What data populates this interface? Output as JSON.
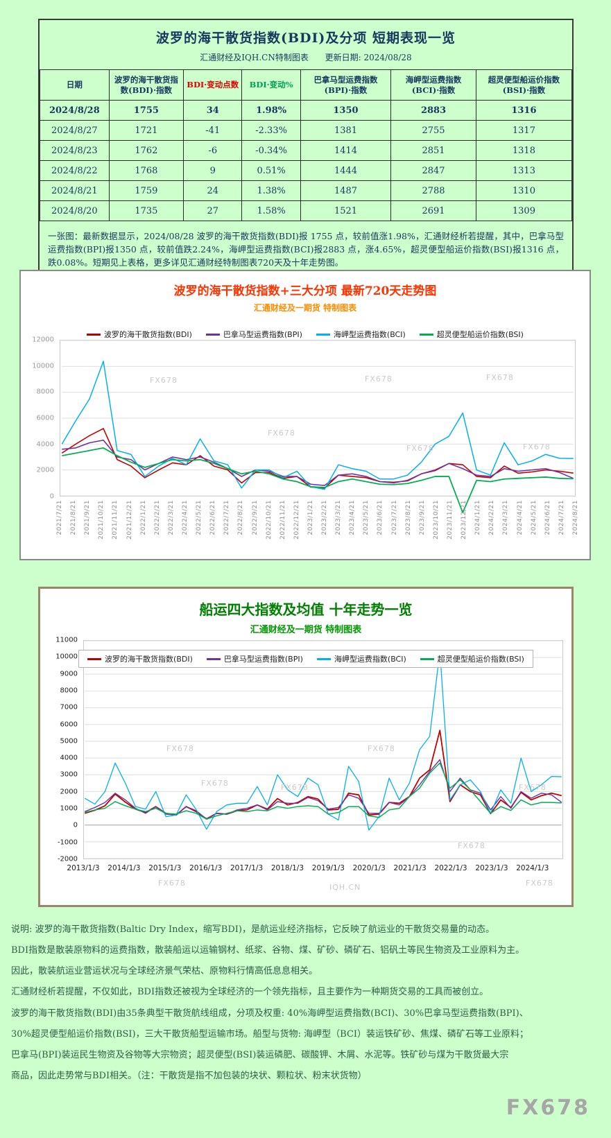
{
  "page": {
    "background": "#ccffcc"
  },
  "watermarks": {
    "fx678": "FX678",
    "iqh": "IQH.CN"
  },
  "table_panel": {
    "title": "波罗的海干散货指数(BDI)及分项  短期表现一览",
    "source": "汇通财经及IQH.CN特制图表",
    "updated": "更新日期: 2024/08/28",
    "columns": [
      "日期",
      "波罗的海干散货指数(BDI)·指数",
      "BDI·变动点数",
      "BDI·变动%",
      "巴拿马型运费指数(BPI)·指数",
      "海岬型运费指数(BCI)·指数",
      "超灵便型船运价指数(BSI)·指数"
    ],
    "rows": [
      [
        "2024/8/28",
        "1755",
        "34",
        "1.98%",
        "1350",
        "2883",
        "1316"
      ],
      [
        "2024/8/27",
        "1721",
        "-41",
        "-2.33%",
        "1381",
        "2755",
        "1317"
      ],
      [
        "2024/8/23",
        "1762",
        "-6",
        "-0.34%",
        "1414",
        "2851",
        "1318"
      ],
      [
        "2024/8/22",
        "1768",
        "9",
        "0.51%",
        "1444",
        "2847",
        "1313"
      ],
      [
        "2024/8/21",
        "1759",
        "24",
        "1.38%",
        "1487",
        "2788",
        "1310"
      ],
      [
        "2024/8/20",
        "1735",
        "27",
        "1.58%",
        "1521",
        "2691",
        "1309"
      ]
    ],
    "note": "一张图：最新数据显示，2024/08/28 波罗的海干散货指数(BDI)报 1755 点，较前值涨1.98%，汇通财经析若提醒，其中，巴拿马型运费指数(BPI)报1350 点，较前值跌2.24%，海岬型运费指数(BCI)报2883 点，涨4.65%，超灵便型船运价指数(BSI)报1316 点，跌0.08%。短期见上表格，更多详见汇通财经特制图表720天及十年走势图。"
  },
  "chart_data": [
    {
      "type": "line",
      "title": "波罗的海干散货指数+三大分项 最新720天走势图",
      "subtitle": "汇通财经及一期货 特制图表",
      "xlabel": "",
      "ylabel": "",
      "ylim": [
        0,
        12000
      ],
      "ytick": 2000,
      "grid": "horizontal",
      "legend_position": "top",
      "x_label_rotate": true,
      "x": [
        "2021/7/21",
        "2021/8/21",
        "2021/9/21",
        "2021/10/21",
        "2021/11/21",
        "2021/12/21",
        "2022/1/21",
        "2022/2/21",
        "2022/3/21",
        "2022/4/21",
        "2022/5/21",
        "2022/6/21",
        "2022/7/21",
        "2022/8/21",
        "2022/9/21",
        "2022/10/21",
        "2022/11/21",
        "2022/12/21",
        "2023/1/21",
        "2023/2/21",
        "2023/3/21",
        "2023/4/21",
        "2023/5/21",
        "2023/6/21",
        "2023/7/21",
        "2023/8/21",
        "2023/9/21",
        "2023/10/21",
        "2023/11/21",
        "2023/12/21",
        "2024/1/21",
        "2024/2/21",
        "2024/3/21",
        "2024/4/21",
        "2024/5/21",
        "2024/6/21",
        "2024/7/21",
        "2024/8/21"
      ],
      "series": [
        {
          "name": "波罗的海干散货指数(BDI)",
          "color": "#c00000",
          "width": 1.6,
          "values": [
            3300,
            4000,
            4650,
            5200,
            2800,
            2300,
            1400,
            2000,
            2550,
            2400,
            3100,
            2300,
            2000,
            1000,
            1800,
            1800,
            1350,
            1500,
            680,
            600,
            1600,
            1500,
            1400,
            1100,
            1050,
            1150,
            1700,
            1950,
            2500,
            2400,
            1500,
            1400,
            2300,
            1750,
            1850,
            2000,
            1900,
            1755
          ]
        },
        {
          "name": "巴拿马型运费指数(BPI)",
          "color": "#7030a0",
          "width": 1.6,
          "values": [
            3600,
            3700,
            4100,
            4300,
            3000,
            2800,
            2000,
            2500,
            3000,
            2800,
            3000,
            2600,
            2100,
            1500,
            2000,
            1900,
            1500,
            1500,
            900,
            800,
            1600,
            1700,
            1500,
            1100,
            1000,
            1200,
            1700,
            2000,
            2500,
            2100,
            1600,
            1500,
            2100,
            1900,
            2000,
            2100,
            1800,
            1350
          ]
        },
        {
          "name": "海岬型运费指数(BCI)",
          "color": "#00b0f0",
          "width": 1.5,
          "values": [
            4000,
            5800,
            7500,
            10400,
            3500,
            3200,
            1500,
            2300,
            2900,
            2400,
            4400,
            2700,
            2400,
            600,
            2000,
            2000,
            1400,
            1900,
            700,
            500,
            2400,
            2100,
            1900,
            1300,
            1300,
            1600,
            2600,
            4000,
            4600,
            6400,
            2000,
            1600,
            4100,
            2400,
            2700,
            3200,
            2900,
            2883
          ]
        },
        {
          "name": "超灵便型船运价指数(BSI)",
          "color": "#00b050",
          "width": 1.8,
          "values": [
            3100,
            3300,
            3500,
            3700,
            3100,
            2600,
            2200,
            2500,
            2800,
            2700,
            2800,
            2500,
            2100,
            1700,
            1900,
            1700,
            1300,
            1100,
            700,
            650,
            1100,
            1300,
            1100,
            900,
            870,
            950,
            1200,
            1500,
            1500,
            -1300,
            1200,
            1100,
            1300,
            1350,
            1400,
            1450,
            1350,
            1316
          ]
        }
      ]
    },
    {
      "type": "line",
      "title": "船运四大指数及均值 十年走势一览",
      "subtitle": "汇通财经及一期货 特制图表",
      "xlabel": "",
      "ylabel": "",
      "ylim": [
        -2000,
        11000
      ],
      "ytick": 1000,
      "grid": "horizontal",
      "legend_position": "top",
      "x_label_rotate": false,
      "x": [
        "2013/1",
        "2013/4",
        "2013/7",
        "2013/10",
        "2014/1",
        "2014/4",
        "2014/7",
        "2014/10",
        "2015/1",
        "2015/4",
        "2015/7",
        "2015/10",
        "2016/1",
        "2016/4",
        "2016/7",
        "2016/10",
        "2017/1",
        "2017/4",
        "2017/7",
        "2017/10",
        "2018/1",
        "2018/4",
        "2018/7",
        "2018/10",
        "2019/1",
        "2019/4",
        "2019/7",
        "2019/10",
        "2020/1",
        "2020/4",
        "2020/7",
        "2020/10",
        "2021/1",
        "2021/4",
        "2021/7",
        "2021/10",
        "2022/1",
        "2022/4",
        "2022/7",
        "2022/10",
        "2023/1",
        "2023/4",
        "2023/7",
        "2023/10",
        "2024/1",
        "2024/4",
        "2024/7",
        "2024/8"
      ],
      "x_labels": [
        "2013/1/3",
        "2014/1/3",
        "2015/1/3",
        "2016/1/3",
        "2017/1/3",
        "2018/1/3",
        "2019/1/3",
        "2020/1/3",
        "2021/1/3",
        "2022/1/3",
        "2023/1/3",
        "2024/1/3"
      ],
      "x_label_indices": [
        0,
        4,
        8,
        12,
        16,
        20,
        24,
        28,
        32,
        36,
        40,
        44
      ],
      "series": [
        {
          "name": "波罗的海干散货指数(BDI)",
          "color": "#c00000",
          "width": 1.8,
          "values": [
            700,
            880,
            1150,
            1850,
            1370,
            950,
            750,
            1100,
            700,
            590,
            1100,
            790,
            370,
            700,
            650,
            850,
            910,
            1200,
            950,
            1580,
            1200,
            1350,
            1700,
            1550,
            900,
            940,
            1900,
            1800,
            600,
            650,
            1350,
            1300,
            1700,
            2800,
            3300,
            5650,
            1400,
            2400,
            2000,
            1800,
            680,
            1500,
            1050,
            1950,
            1500,
            1750,
            1900,
            1755
          ]
        },
        {
          "name": "巴拿马型运费指数(BPI)",
          "color": "#7030a0",
          "width": 1.4,
          "values": [
            800,
            1050,
            1350,
            1900,
            1500,
            1000,
            700,
            1100,
            650,
            600,
            1100,
            850,
            350,
            700,
            650,
            900,
            1000,
            1200,
            900,
            1400,
            1300,
            1300,
            1650,
            1450,
            950,
            1050,
            1800,
            1600,
            700,
            700,
            1350,
            1200,
            1700,
            2400,
            3200,
            3900,
            2000,
            2800,
            2100,
            1900,
            900,
            1700,
            1000,
            2000,
            1600,
            1900,
            1800,
            1350
          ]
        },
        {
          "name": "海岬型运费指数(BCI)",
          "color": "#00b0f0",
          "width": 1.3,
          "values": [
            1600,
            1250,
            2000,
            3700,
            2500,
            1100,
            950,
            2000,
            500,
            600,
            1800,
            900,
            -250,
            800,
            1200,
            1300,
            1300,
            2300,
            1200,
            3000,
            2100,
            1700,
            2800,
            2400,
            650,
            300,
            3500,
            2600,
            -300,
            500,
            2800,
            1500,
            2500,
            4500,
            5300,
            10400,
            1500,
            2400,
            2700,
            2000,
            700,
            2100,
            1300,
            4000,
            2000,
            2400,
            2900,
            2883
          ]
        },
        {
          "name": "超灵便型船运价指数(BSI)",
          "color": "#00b050",
          "width": 1.5,
          "values": [
            750,
            900,
            1000,
            1400,
            1150,
            950,
            800,
            1000,
            700,
            650,
            850,
            700,
            350,
            550,
            700,
            850,
            800,
            900,
            850,
            1100,
            1000,
            1100,
            1150,
            1100,
            650,
            750,
            1100,
            1100,
            550,
            450,
            900,
            1000,
            1700,
            2200,
            3100,
            3700,
            2200,
            2700,
            2100,
            1400,
            700,
            1100,
            870,
            1500,
            1200,
            1350,
            1350,
            1316
          ]
        }
      ]
    }
  ],
  "explanation": {
    "lines": [
      "说明: 波罗的海干散货指数(Baltic Dry Index，缩写BDI)，是航运业经济指标，它反映了航运业的干散货交易量的动态。",
      "BDI指数是散装原物料的运费指数，散装船运以运输钢材、纸浆、谷物、煤、矿砂、磷矿石、铝矾土等民生物资及工业原料为主。",
      "因此，散装航运业营运状况与全球经济景气荣枯、原物料行情高低息息相关。",
      "汇通财经析若提醒，不仅如此，BDI指数还被视为全球经济的一个领先指标，且主要作为一种期货交易的工具而被创立。",
      "波罗的海干散货指数(BDI)由35条典型干散货航线组成，分项及权重: 40%海岬型运费指数(BCI)、30%巴拿马型运费指数(BPI)、",
      "30%超灵便型船运价指数(BSI)，三大干散货船型运输市场。船型与货物: 海岬型（BCI）装运铁矿砂、焦煤、磷矿石等工业原料；",
      "巴拿马(BPI)装运民生物资及谷物等大宗物资；超灵便型(BSI)装运磷肥、碳酸钾、木屑、水泥等。铁矿砂与煤为干散货最大宗",
      "商品，因此走势常与BDI相关。（注：干散货是指不加包装的块状、颗粒状、粉末状货物）"
    ]
  }
}
